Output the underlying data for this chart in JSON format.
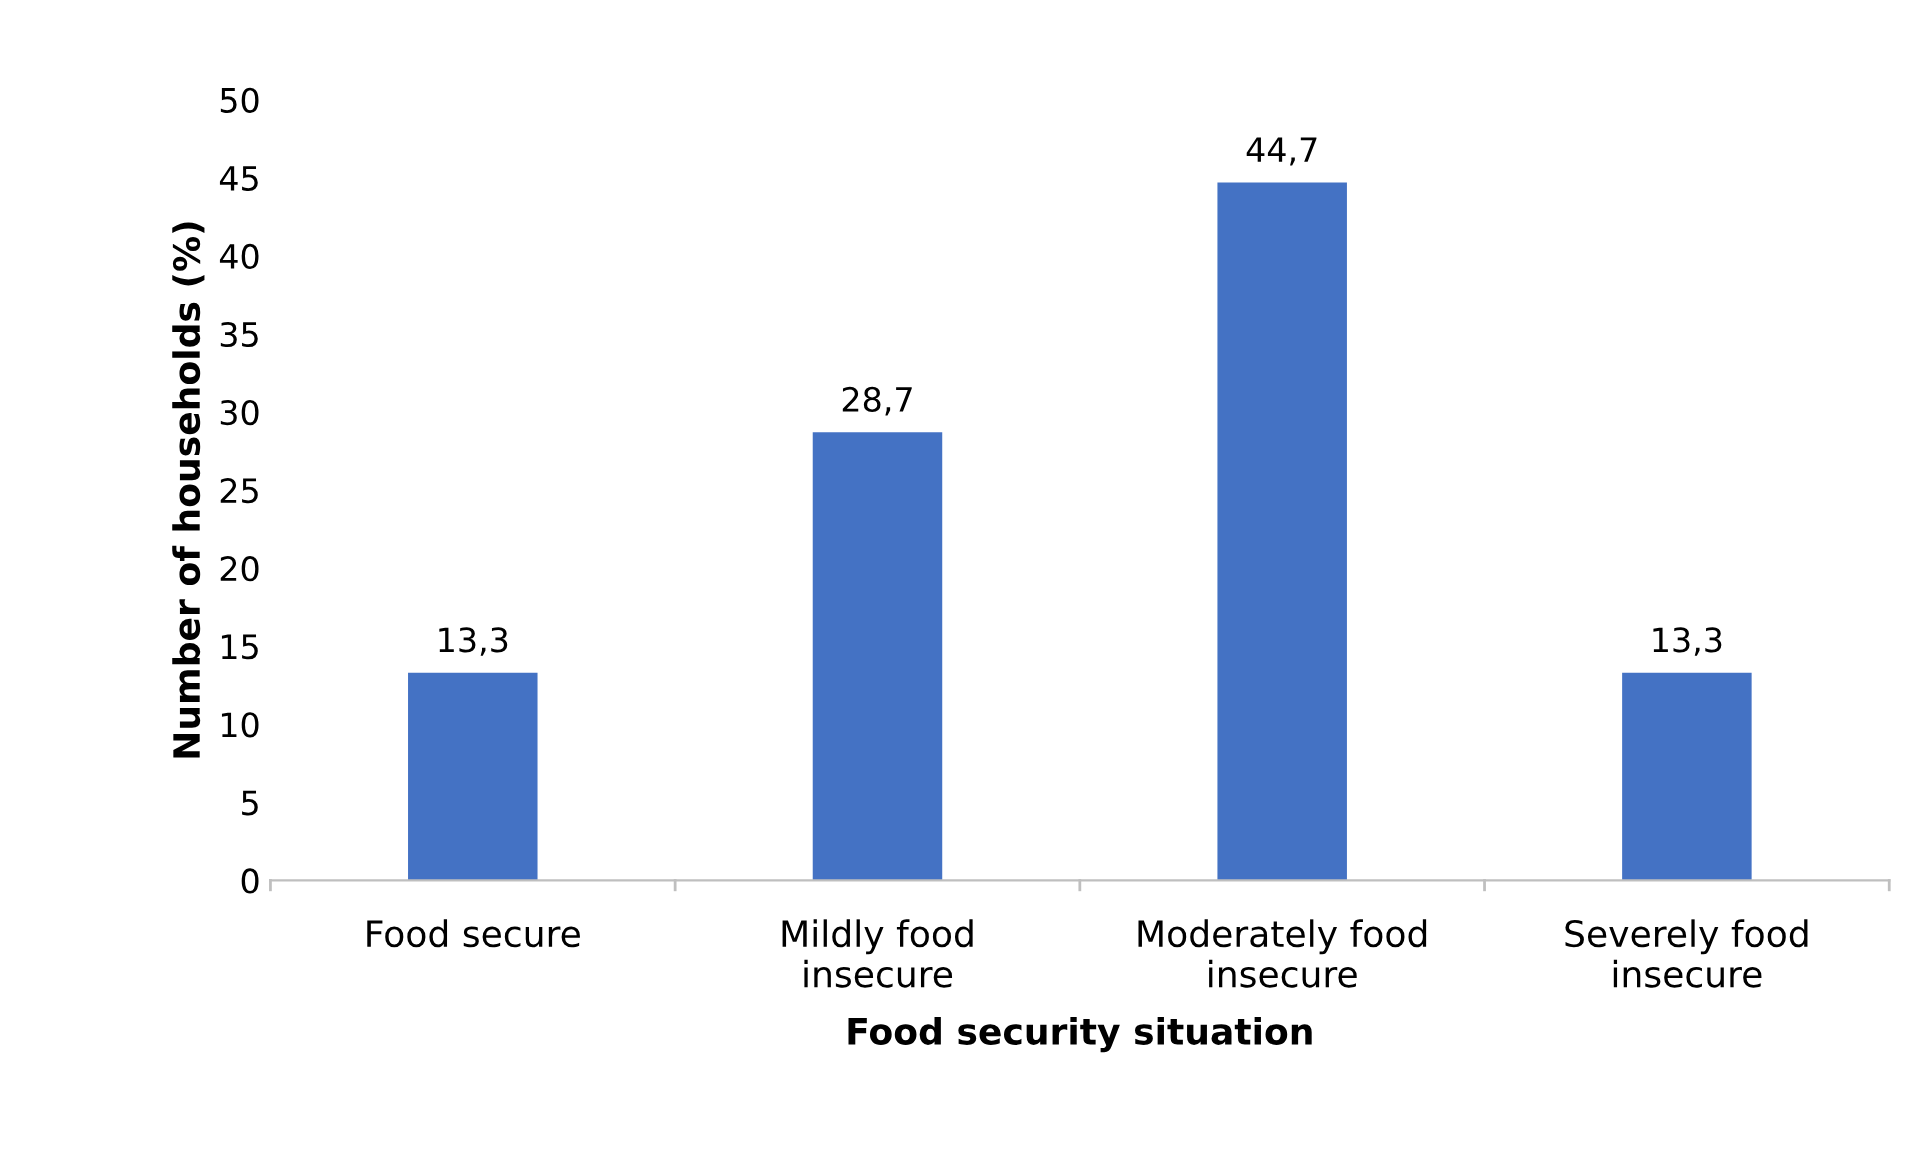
{
  "chart_data": {
    "type": "bar",
    "xlabel": "Food security situation",
    "ylabel": "Number of households (%)",
    "categories": [
      "Food secure",
      "Mildly food\ninsecure",
      "Moderately food\ninsecure",
      "Severely food\ninsecure"
    ],
    "values": [
      13.3,
      28.7,
      44.7,
      13.3
    ],
    "value_labels": [
      "13,3",
      "28,7",
      "44,7",
      "13,3"
    ],
    "color": "#4472c4",
    "ylim": [
      0,
      50
    ],
    "yticks": [
      0,
      5,
      10,
      15,
      20,
      25,
      30,
      35,
      40,
      45,
      50
    ],
    "grid": false,
    "legend": false
  }
}
